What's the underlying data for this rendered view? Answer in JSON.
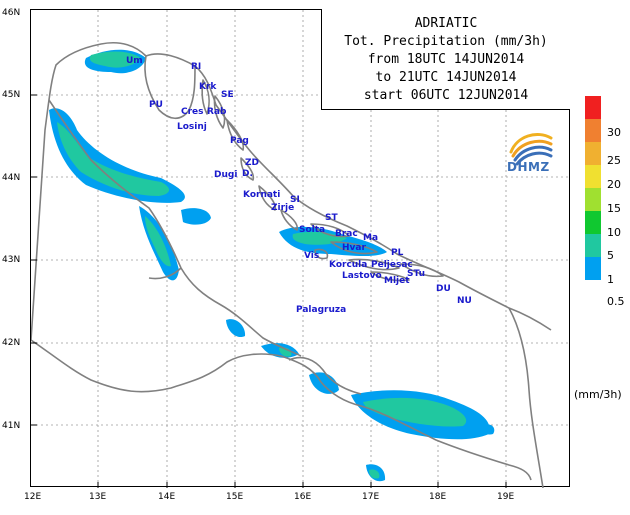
{
  "title": {
    "line1": "ADRIATIC",
    "line2": "Tot. Precipitation (mm/3h)",
    "line3": "from 18UTC 14JUN2014",
    "line4": "to 21UTC 14JUN2014",
    "line5": "start 06UTC 12JUN2014"
  },
  "logo_text": "DHMZ",
  "lat_labels": [
    "46N",
    "45N",
    "44N",
    "43N",
    "42N",
    "41N"
  ],
  "lon_labels": [
    "12E",
    "13E",
    "14E",
    "15E",
    "16E",
    "17E",
    "18E",
    "19E"
  ],
  "places": [
    {
      "key": "um",
      "label": "Um"
    },
    {
      "key": "ri",
      "label": "RI"
    },
    {
      "key": "krk",
      "label": "Krk"
    },
    {
      "key": "se",
      "label": "SE"
    },
    {
      "key": "pu",
      "label": "PU"
    },
    {
      "key": "cres",
      "label": "Cres"
    },
    {
      "key": "rab",
      "label": "Rab"
    },
    {
      "key": "losinj",
      "label": "Losinj"
    },
    {
      "key": "pag",
      "label": "Pag"
    },
    {
      "key": "zd",
      "label": "ZD"
    },
    {
      "key": "dugi",
      "label": "Dugi"
    },
    {
      "key": "d",
      "label": "D."
    },
    {
      "key": "kornati",
      "label": "Kornati"
    },
    {
      "key": "si",
      "label": "SI"
    },
    {
      "key": "zirje",
      "label": "Zirje"
    },
    {
      "key": "st",
      "label": "ST"
    },
    {
      "key": "solta",
      "label": "Solta"
    },
    {
      "key": "brac",
      "label": "Brac"
    },
    {
      "key": "ma",
      "label": "Ma"
    },
    {
      "key": "hvar",
      "label": "Hvar"
    },
    {
      "key": "pl",
      "label": "PL"
    },
    {
      "key": "vis",
      "label": "Vis"
    },
    {
      "key": "korcula",
      "label": "Korcula"
    },
    {
      "key": "peljesac",
      "label": "Peljesac"
    },
    {
      "key": "stu",
      "label": "STu"
    },
    {
      "key": "lastovo",
      "label": "Lastovo"
    },
    {
      "key": "mljet",
      "label": "Mljet"
    },
    {
      "key": "du",
      "label": "DU"
    },
    {
      "key": "nu",
      "label": "NU"
    },
    {
      "key": "palagruza",
      "label": "Palagruza"
    }
  ],
  "legend": {
    "unit": "(mm/3h)",
    "bins": [
      {
        "label": "0.5",
        "color": "#00a0f0"
      },
      {
        "label": "1",
        "color": "#20c8a0"
      },
      {
        "label": "5",
        "color": "#10c830"
      },
      {
        "label": "10",
        "color": "#a0e030"
      },
      {
        "label": "15",
        "color": "#f0e030"
      },
      {
        "label": "20",
        "color": "#f0b030"
      },
      {
        "label": "25",
        "color": "#f08030"
      },
      {
        "label": "30",
        "color": "#f02020"
      }
    ]
  },
  "colors": {
    "precip_light": "#00a0f0",
    "precip_medium": "#20c8a0",
    "coastline": "#808080",
    "place_label": "#1a1acc"
  }
}
